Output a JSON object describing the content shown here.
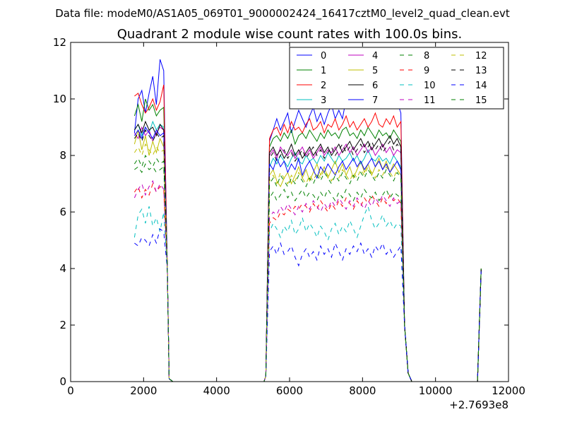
{
  "figure": {
    "suptitle": "Data file: modeM0/AS1A05_069T01_9000002424_16417cztM0_level2_quad_clean.evt"
  },
  "chart_data": {
    "type": "line",
    "title": "Quadrant 2 module wise count rates with 100.0s bins.",
    "xlabel": "",
    "ylabel": "",
    "x_offset_label": "+2.7693e8",
    "xlim": [
      0,
      12000
    ],
    "ylim": [
      0,
      12
    ],
    "xticks": [
      0,
      2000,
      4000,
      6000,
      8000,
      10000,
      12000
    ],
    "xtick_labels": [
      "0",
      "2000",
      "4000",
      "6000",
      "8000",
      "10000",
      "12000"
    ],
    "yticks": [
      0,
      2,
      4,
      6,
      8,
      10,
      12
    ],
    "ytick_labels": [
      "0",
      "2",
      "4",
      "6",
      "8",
      "10",
      "12"
    ],
    "grid": false,
    "legend_position": "top-right",
    "legend_columns": 4,
    "segments": [
      {
        "start": 1750,
        "end": 2550,
        "step": 100
      },
      {
        "start": 5450,
        "end": 9050,
        "step": 100
      }
    ],
    "transition_points": [
      [
        2650,
        4
      ],
      [
        2700,
        0.1
      ],
      [
        2800,
        0
      ],
      [
        5300,
        0
      ],
      [
        5350,
        0.2
      ],
      [
        9150,
        2
      ],
      [
        9250,
        0.3
      ],
      [
        9350,
        0
      ],
      [
        11150,
        0
      ],
      [
        11250,
        4
      ]
    ],
    "series": [
      {
        "name": "0",
        "color": "#0000ff",
        "style": "solid",
        "seg1": [
          8.8,
          10.0,
          10.3,
          9.5,
          10.2,
          10.8,
          9.8,
          11.4,
          11.0
        ],
        "seg2": [
          8.5,
          8.9,
          9.3,
          8.9,
          9.2,
          9.5,
          8.8,
          9.2,
          9.6,
          9.3,
          9.0,
          9.4,
          9.7,
          9.2,
          9.5,
          9.1,
          9.5,
          9.8,
          9.3,
          9.6,
          9.3,
          10.0,
          10.3,
          9.7,
          10.2,
          10.4,
          9.8,
          10.1,
          10.5,
          10.2,
          9.8,
          10.1,
          10.4,
          9.9,
          10.2,
          9.9,
          9.5
        ]
      },
      {
        "name": "1",
        "color": "#008000",
        "style": "solid",
        "seg1": [
          9.4,
          9.8,
          9.2,
          10.0,
          9.6,
          9.8,
          9.4,
          9.6,
          9.7
        ],
        "seg2": [
          8.3,
          8.6,
          8.7,
          8.5,
          8.8,
          8.6,
          8.9,
          8.4,
          8.7,
          8.8,
          8.6,
          8.9,
          8.7,
          8.5,
          8.8,
          8.6,
          8.9,
          8.7,
          8.8,
          8.6,
          8.9,
          9.0,
          8.7,
          8.8,
          8.6,
          8.9,
          8.7,
          9.0,
          8.8,
          8.6,
          8.9,
          8.7,
          8.8,
          8.6,
          8.9,
          8.7,
          8.5
        ]
      },
      {
        "name": "2",
        "color": "#ff0000",
        "style": "solid",
        "seg1": [
          10.1,
          10.2,
          9.8,
          9.5,
          9.7,
          10.0,
          9.6,
          9.9,
          10.5
        ],
        "seg2": [
          8.6,
          8.9,
          9.0,
          8.7,
          9.1,
          8.8,
          9.2,
          8.9,
          9.0,
          8.8,
          9.1,
          9.3,
          8.9,
          9.0,
          9.2,
          8.8,
          9.1,
          9.0,
          9.3,
          8.9,
          9.1,
          9.4,
          9.0,
          9.2,
          8.9,
          9.1,
          9.3,
          9.0,
          9.2,
          9.5,
          9.1,
          9.0,
          9.3,
          9.1,
          9.4,
          9.0,
          9.2
        ]
      },
      {
        "name": "3",
        "color": "#00bfbf",
        "style": "solid",
        "seg1": [
          8.9,
          9.1,
          8.7,
          9.0,
          8.8,
          9.2,
          8.9,
          9.1,
          9.0
        ],
        "seg2": [
          7.6,
          7.9,
          7.7,
          8.0,
          7.8,
          7.6,
          7.9,
          8.1,
          7.8,
          7.7,
          8.0,
          7.8,
          7.9,
          7.7,
          8.0,
          7.8,
          8.1,
          7.9,
          7.7,
          8.0,
          7.8,
          7.9,
          8.1,
          7.8,
          8.0,
          7.7,
          7.9,
          8.2,
          7.9,
          7.8,
          8.0,
          7.8,
          7.9,
          7.7,
          8.0,
          7.8,
          7.6
        ]
      },
      {
        "name": "4",
        "color": "#bf00bf",
        "style": "solid",
        "seg1": [
          8.8,
          8.6,
          9.0,
          8.7,
          8.9,
          8.5,
          8.8,
          9.0,
          8.9
        ],
        "seg2": [
          8.0,
          8.2,
          7.9,
          8.3,
          8.1,
          8.0,
          8.2,
          7.9,
          8.1,
          8.3,
          8.0,
          8.2,
          7.9,
          8.1,
          8.3,
          8.0,
          8.2,
          8.1,
          8.3,
          8.0,
          8.2,
          8.4,
          8.1,
          8.3,
          8.0,
          8.2,
          8.4,
          8.1,
          8.3,
          8.0,
          8.2,
          8.4,
          8.1,
          8.3,
          8.0,
          8.2,
          8.1
        ]
      },
      {
        "name": "5",
        "color": "#bfbf00",
        "style": "solid",
        "seg1": [
          8.4,
          8.9,
          8.2,
          8.7,
          8.0,
          8.5,
          8.1,
          8.6,
          8.3
        ],
        "seg2": [
          7.3,
          7.5,
          7.1,
          6.9,
          7.2,
          7.4,
          7.0,
          7.3,
          7.6,
          7.2,
          7.5,
          7.1,
          7.4,
          7.7,
          7.3,
          7.6,
          7.2,
          7.5,
          7.8,
          7.4,
          7.7,
          7.3,
          7.6,
          7.2,
          7.5,
          7.8,
          7.4,
          7.7,
          7.3,
          7.6,
          7.9,
          7.5,
          7.8,
          7.4,
          7.7,
          7.5,
          7.3
        ]
      },
      {
        "name": "6",
        "color": "#000000",
        "style": "solid",
        "seg1": [
          8.9,
          9.1,
          8.8,
          9.2,
          8.9,
          9.0,
          8.7,
          9.1,
          8.9
        ],
        "seg2": [
          8.1,
          8.3,
          8.0,
          8.2,
          7.9,
          8.1,
          8.4,
          8.0,
          8.2,
          7.9,
          8.1,
          8.3,
          8.0,
          8.2,
          8.4,
          8.1,
          8.3,
          8.0,
          8.2,
          8.4,
          8.1,
          8.3,
          8.5,
          8.2,
          8.4,
          8.6,
          8.3,
          8.5,
          8.2,
          8.4,
          8.6,
          8.3,
          8.5,
          8.7,
          8.4,
          8.6,
          8.3
        ]
      },
      {
        "name": "7",
        "color": "#0000ff",
        "style": "solid",
        "seg1": [
          8.7,
          8.9,
          8.6,
          9.0,
          8.8,
          8.6,
          8.9,
          8.7,
          8.8
        ],
        "seg2": [
          7.7,
          7.5,
          7.9,
          7.6,
          7.8,
          7.4,
          7.7,
          7.5,
          7.9,
          7.3,
          7.6,
          7.8,
          7.5,
          7.2,
          7.6,
          7.4,
          7.7,
          7.5,
          7.3,
          7.6,
          7.8,
          7.5,
          7.7,
          7.9,
          7.6,
          7.8,
          7.5,
          7.7,
          7.9,
          7.6,
          7.8,
          7.5,
          7.7,
          7.4,
          7.6,
          7.8,
          7.5
        ]
      },
      {
        "name": "8",
        "color": "#008000",
        "style": "dashed",
        "seg1": [
          7.5,
          7.6,
          7.4,
          7.7,
          7.5,
          7.6,
          7.4,
          7.5,
          7.6
        ],
        "seg2": [
          6.5,
          6.7,
          6.4,
          6.6,
          6.8,
          6.5,
          6.7,
          6.4,
          6.6,
          6.8,
          6.5,
          6.7,
          6.6,
          6.4,
          6.7,
          6.5,
          6.8,
          6.6,
          6.4,
          6.7,
          6.5,
          6.8,
          6.6,
          6.4,
          6.7,
          6.5,
          6.8,
          6.6,
          6.5,
          6.7,
          6.4,
          6.6,
          6.8,
          6.5,
          6.7,
          6.6,
          6.5
        ]
      },
      {
        "name": "9",
        "color": "#ff0000",
        "style": "dashed",
        "seg1": [
          6.7,
          6.9,
          6.5,
          6.8,
          6.6,
          7.0,
          6.7,
          6.9,
          6.8
        ],
        "seg2": [
          5.6,
          5.8,
          5.7,
          6.0,
          5.9,
          6.1,
          6.0,
          6.2,
          6.1,
          6.3,
          6.2,
          6.0,
          6.3,
          6.1,
          6.4,
          6.2,
          6.0,
          6.3,
          6.1,
          6.4,
          6.2,
          6.5,
          6.3,
          6.1,
          6.4,
          6.2,
          6.5,
          6.3,
          6.6,
          6.4,
          6.2,
          6.5,
          6.3,
          6.6,
          6.4,
          6.5,
          6.3
        ]
      },
      {
        "name": "10",
        "color": "#00bfbf",
        "style": "dashed",
        "seg1": [
          5.1,
          5.9,
          6.1,
          5.6,
          6.2,
          5.5,
          5.8,
          5.3,
          6.0
        ],
        "seg2": [
          5.3,
          5.6,
          5.4,
          5.1,
          5.5,
          5.3,
          5.7,
          5.2,
          5.4,
          5.8,
          5.3,
          5.6,
          5.4,
          5.1,
          5.5,
          5.3,
          5.0,
          5.4,
          5.6,
          5.2,
          5.5,
          5.3,
          5.7,
          5.4,
          5.1,
          5.5,
          5.9,
          6.2,
          5.7,
          5.4,
          5.6,
          5.9,
          5.5,
          5.7,
          5.4,
          5.6,
          5.5
        ]
      },
      {
        "name": "11",
        "color": "#bf00bf",
        "style": "dashed",
        "seg1": [
          6.5,
          6.8,
          7.0,
          6.6,
          6.9,
          7.1,
          6.7,
          7.0,
          6.8
        ],
        "seg2": [
          5.8,
          6.0,
          5.9,
          6.2,
          6.0,
          6.3,
          6.1,
          5.9,
          6.2,
          6.0,
          6.3,
          6.1,
          6.4,
          6.2,
          6.0,
          6.3,
          6.1,
          6.4,
          6.2,
          6.5,
          6.3,
          6.1,
          6.4,
          6.2,
          6.5,
          6.3,
          6.1,
          6.4,
          6.2,
          6.5,
          6.3,
          6.6,
          6.4,
          6.2,
          6.5,
          6.3,
          6.4
        ]
      },
      {
        "name": "12",
        "color": "#bfbf00",
        "style": "dashed",
        "seg1": [
          8.1,
          8.3,
          8.0,
          8.4,
          8.2,
          8.0,
          8.3,
          8.1,
          8.2
        ],
        "seg2": [
          7.1,
          7.3,
          7.0,
          7.4,
          7.2,
          7.0,
          7.3,
          7.1,
          7.4,
          7.2,
          7.0,
          7.3,
          7.1,
          7.4,
          7.2,
          7.5,
          7.3,
          7.1,
          7.4,
          7.2,
          7.5,
          7.3,
          7.1,
          7.4,
          7.2,
          7.5,
          7.3,
          7.6,
          7.4,
          7.2,
          7.5,
          7.3,
          7.6,
          7.4,
          7.2,
          7.5,
          7.3
        ]
      },
      {
        "name": "13",
        "color": "#000000",
        "style": "dashed",
        "seg1": [
          8.6,
          8.8,
          8.5,
          8.9,
          8.7,
          8.5,
          8.8,
          8.6,
          8.7
        ],
        "seg2": [
          7.9,
          8.1,
          7.8,
          8.0,
          8.2,
          7.9,
          8.1,
          7.8,
          8.0,
          8.2,
          7.9,
          8.1,
          8.3,
          8.0,
          8.2,
          7.9,
          8.1,
          8.3,
          8.0,
          8.2,
          8.4,
          8.1,
          8.3,
          8.0,
          8.2,
          8.4,
          8.1,
          8.3,
          8.5,
          8.2,
          8.4,
          8.1,
          8.3,
          8.5,
          8.2,
          8.4,
          8.2
        ]
      },
      {
        "name": "14",
        "color": "#0000ff",
        "style": "dashed",
        "seg1": [
          4.9,
          4.8,
          5.1,
          5.0,
          4.8,
          5.2,
          4.9,
          5.4,
          5.3
        ],
        "seg2": [
          4.6,
          4.8,
          4.5,
          4.9,
          4.5,
          4.6,
          4.8,
          4.4,
          4.1,
          4.5,
          4.7,
          4.4,
          4.6,
          4.3,
          4.8,
          4.5,
          4.7,
          4.4,
          4.9,
          4.6,
          4.3,
          4.7,
          4.5,
          4.8,
          4.6,
          4.9,
          4.5,
          4.7,
          4.4,
          4.8,
          4.6,
          4.9,
          4.5,
          4.7,
          4.4,
          4.6,
          4.8
        ]
      },
      {
        "name": "15",
        "color": "#008000",
        "style": "dashed",
        "seg1": [
          7.7,
          7.9,
          7.6,
          8.0,
          7.8,
          7.6,
          7.9,
          7.7,
          7.8
        ],
        "seg2": [
          7.0,
          7.2,
          6.9,
          7.3,
          7.1,
          6.9,
          7.2,
          7.0,
          7.3,
          7.1,
          6.9,
          7.2,
          7.0,
          7.3,
          7.1,
          7.4,
          7.2,
          7.0,
          7.3,
          7.1,
          7.4,
          7.2,
          7.0,
          7.3,
          7.1,
          7.4,
          7.2,
          7.5,
          7.3,
          7.1,
          7.4,
          7.2,
          7.5,
          7.3,
          7.1,
          7.4,
          7.2
        ]
      }
    ]
  }
}
